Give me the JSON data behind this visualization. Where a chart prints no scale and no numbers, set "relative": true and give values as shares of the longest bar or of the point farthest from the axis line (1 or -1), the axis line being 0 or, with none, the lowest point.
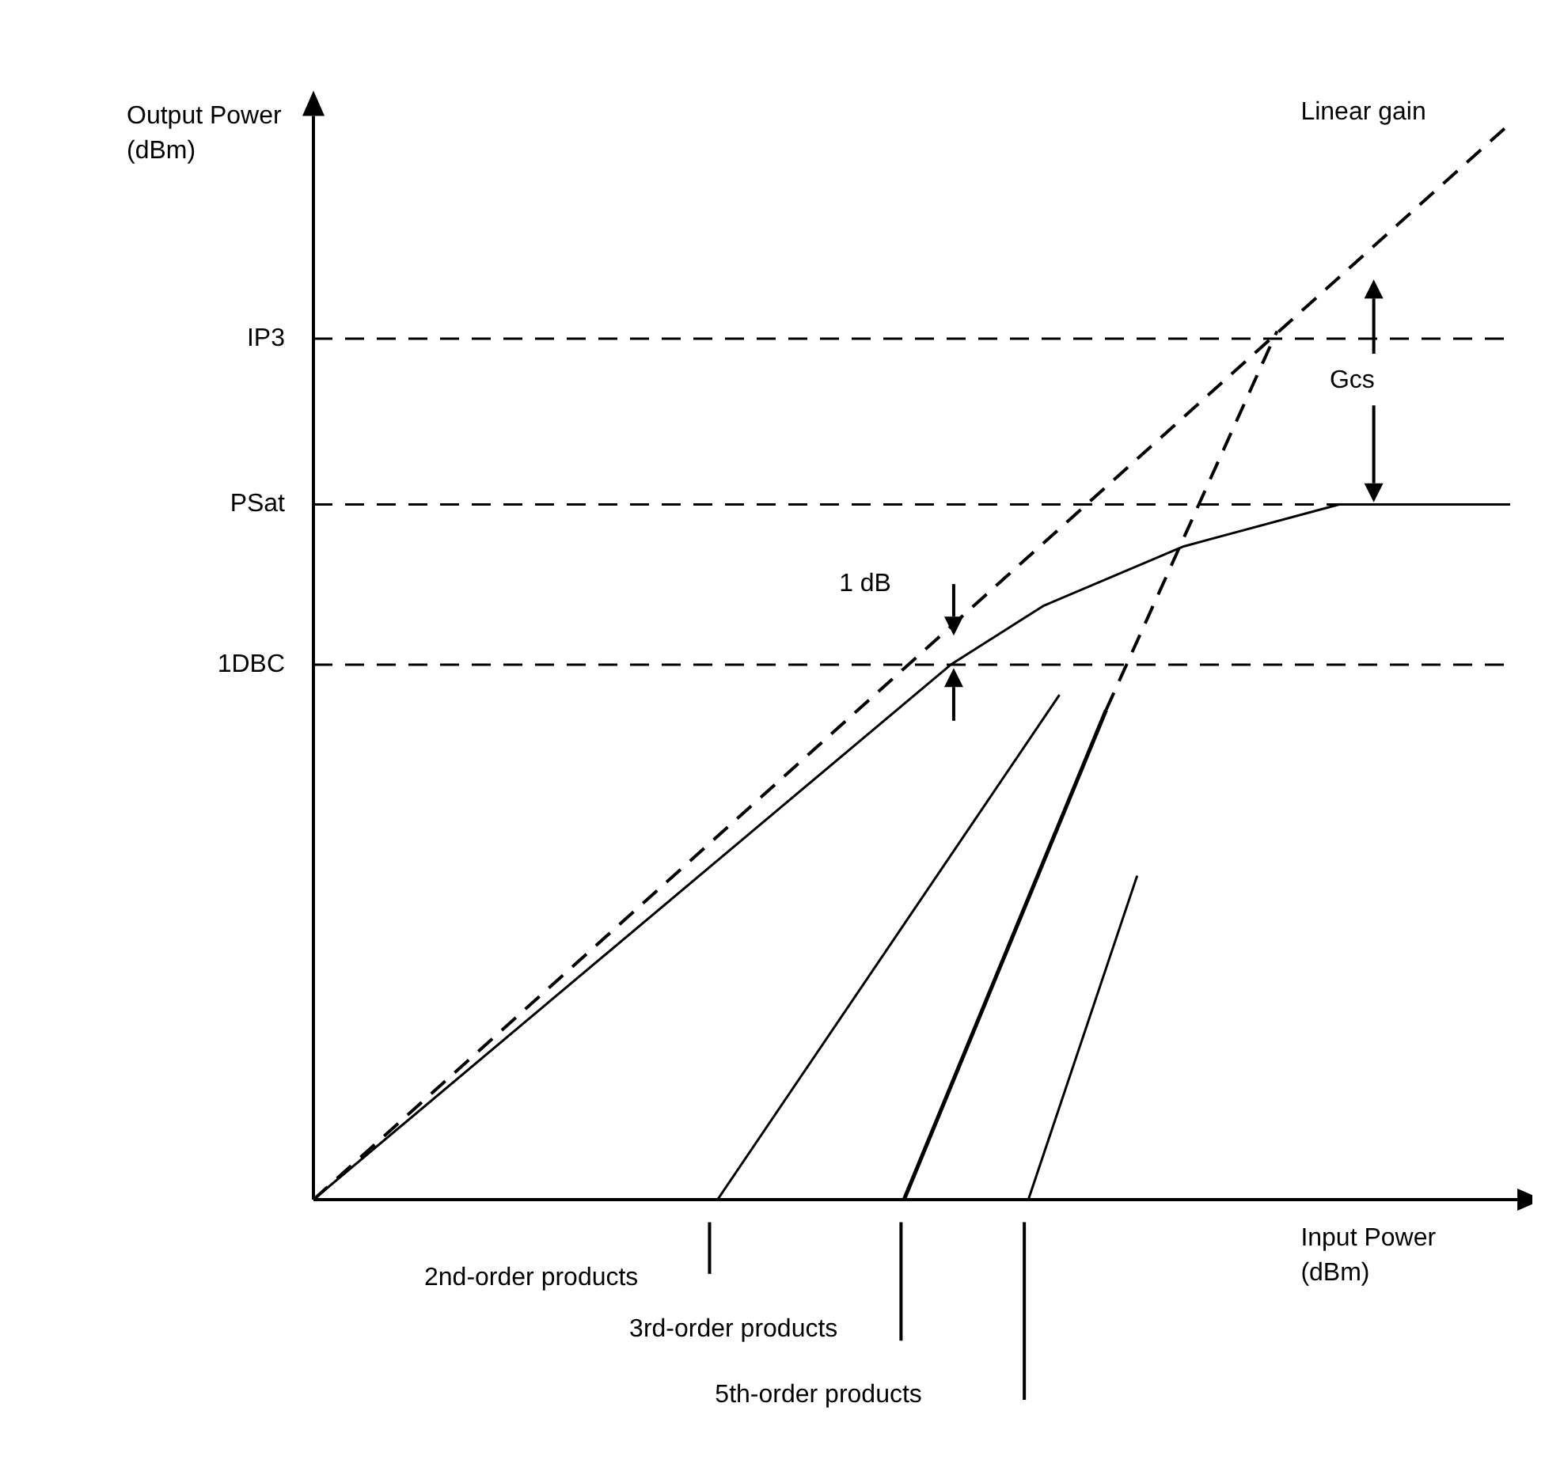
{
  "chart_data": {
    "type": "line",
    "relative": true,
    "xlabel": "Input Power (dBm)",
    "ylabel": "Output Power (dBm)",
    "legend": false,
    "categories": [
      null,
      null,
      null,
      null,
      null,
      null,
      null,
      null,
      null,
      null,
      null,
      null,
      null,
      null,
      null,
      null,
      null,
      null,
      null,
      null,
      null,
      null,
      null,
      null,
      null,
      null,
      null,
      null,
      null,
      null,
      null,
      null,
      null,
      null,
      null,
      null,
      null,
      null,
      null,
      null,
      null,
      null,
      null,
      null,
      null,
      null,
      null,
      null,
      null,
      null,
      null,
      null,
      null,
      null,
      null,
      null,
      null,
      null,
      null,
      null,
      null,
      null,
      null,
      null,
      null,
      null,
      null,
      null,
      null,
      null,
      null,
      null,
      null,
      null,
      null,
      null,
      null,
      null
    ],
    "series": [
      {
        "name": "Linear gain",
        "color": "#000000",
        "line_style": "dashed",
        "values": [
          0,
          null,
          null,
          null,
          null,
          null,
          null,
          null,
          null,
          null,
          null,
          null,
          null,
          null,
          null,
          null,
          null,
          null,
          null,
          null,
          null,
          null,
          null,
          null,
          null,
          null,
          null,
          null,
          null,
          null,
          null,
          null,
          null,
          null,
          null,
          null,
          null,
          null,
          null,
          null,
          null,
          null,
          null,
          null,
          null,
          null,
          null,
          null,
          null,
          null,
          null,
          null,
          null,
          null,
          null,
          null,
          null,
          null,
          null,
          null,
          null,
          null,
          null,
          null,
          null,
          null,
          null,
          null,
          null,
          null,
          null,
          null,
          null,
          null,
          null,
          null,
          null,
          1
        ]
      },
      {
        "color": "#000000",
        "line_style": "solid",
        "values": [
          0,
          null,
          null,
          null,
          null,
          null,
          null,
          null,
          null,
          null,
          null,
          null,
          null,
          null,
          null,
          null,
          null,
          null,
          null,
          null,
          null,
          null,
          null,
          null,
          null,
          null,
          null,
          null,
          null,
          null,
          null,
          null,
          null,
          null,
          null,
          null,
          null,
          null,
          null,
          null,
          null,
          0.497,
          null,
          null,
          null,
          null,
          null,
          0.552,
          null,
          null,
          null,
          null,
          null,
          null,
          null,
          null,
          0.607,
          null,
          null,
          null,
          null,
          null,
          null,
          null,
          null,
          null,
          0.646,
          null,
          null,
          null,
          null,
          null,
          null,
          null,
          null,
          null,
          null,
          0.646
        ]
      },
      {
        "color": "#000000",
        "line_style": "solid",
        "values": [
          null,
          null,
          null,
          null,
          null,
          null,
          null,
          null,
          null,
          null,
          null,
          null,
          null,
          null,
          null,
          null,
          null,
          null,
          null,
          null,
          null,
          null,
          null,
          null,
          null,
          null,
          0,
          null,
          null,
          null,
          null,
          null,
          null,
          null,
          null,
          null,
          null,
          null,
          null,
          null,
          null,
          null,
          null,
          null,
          null,
          null,
          null,
          null,
          0.469,
          null,
          null,
          null,
          null,
          null,
          null,
          null,
          null,
          null,
          null,
          null,
          null,
          null,
          null,
          null,
          null,
          null,
          null,
          null,
          null,
          null,
          null,
          null,
          null,
          null,
          null,
          null,
          null,
          null
        ]
      },
      {
        "color": "#000000",
        "line_style": "solid",
        "values": [
          null,
          null,
          null,
          null,
          null,
          null,
          null,
          null,
          null,
          null,
          null,
          null,
          null,
          null,
          null,
          null,
          null,
          null,
          null,
          null,
          null,
          null,
          null,
          null,
          null,
          null,
          null,
          null,
          null,
          null,
          null,
          null,
          null,
          null,
          null,
          null,
          null,
          null,
          0,
          null,
          null,
          null,
          null,
          null,
          null,
          null,
          null,
          null,
          null,
          null,
          null,
          0.455,
          null,
          null,
          null,
          null,
          null,
          null,
          null,
          null,
          null,
          null,
          null,
          null,
          null,
          null,
          null,
          null,
          null,
          null,
          null,
          null,
          null,
          null,
          null,
          null,
          null,
          null
        ]
      },
      {
        "color": "#000000",
        "line_style": "dashed",
        "values": [
          null,
          null,
          null,
          null,
          null,
          null,
          null,
          null,
          null,
          null,
          null,
          null,
          null,
          null,
          null,
          null,
          null,
          null,
          null,
          null,
          null,
          null,
          null,
          null,
          null,
          null,
          null,
          null,
          null,
          null,
          null,
          null,
          null,
          null,
          null,
          null,
          null,
          null,
          null,
          null,
          null,
          null,
          null,
          null,
          null,
          null,
          null,
          null,
          null,
          null,
          null,
          0.455,
          null,
          null,
          null,
          null,
          null,
          null,
          null,
          null,
          null,
          null,
          0.807,
          null,
          null,
          null,
          null,
          null,
          null,
          null,
          null,
          null,
          null,
          null,
          null,
          null,
          null,
          null
        ]
      },
      {
        "color": "#000000",
        "line_style": "solid",
        "values": [
          null,
          null,
          null,
          null,
          null,
          null,
          null,
          null,
          null,
          null,
          null,
          null,
          null,
          null,
          null,
          null,
          null,
          null,
          null,
          null,
          null,
          null,
          null,
          null,
          null,
          null,
          null,
          null,
          null,
          null,
          null,
          null,
          null,
          null,
          null,
          null,
          null,
          null,
          null,
          null,
          null,
          null,
          null,
          null,
          null,
          null,
          0,
          null,
          null,
          null,
          null,
          null,
          null,
          0.301,
          null,
          null,
          null,
          null,
          null,
          null,
          null,
          null,
          null,
          null,
          null,
          null,
          null,
          null,
          null,
          null,
          null,
          null,
          null,
          null,
          null,
          null,
          null,
          null
        ]
      }
    ],
    "ref_lines": [
      {
        "axis": "y",
        "value": 0.8,
        "label": "IP3",
        "color": "#000000",
        "line_style": "dashed"
      },
      {
        "axis": "y",
        "value": 0.646,
        "label": "PSat",
        "color": "#000000",
        "line_style": "dashed"
      },
      {
        "axis": "y",
        "value": 0.497,
        "label": "1DBC",
        "color": "#000000",
        "line_style": "dashed"
      }
    ],
    "annotations": [
      "1 dB",
      "Gcs",
      "2nd-order products",
      "3rd-order products",
      "5th-order products"
    ]
  }
}
